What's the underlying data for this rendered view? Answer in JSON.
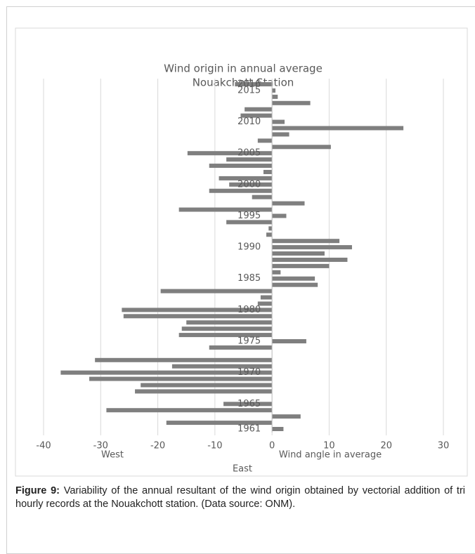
{
  "chart_data": {
    "type": "hbar",
    "title": "Wind origin in annual average",
    "subtitle": "Nouakchott Station",
    "x_label": "Wind angle in average",
    "annotations": [
      "West",
      "East"
    ],
    "categories": [
      "1961",
      null,
      null,
      null,
      "1965",
      null,
      null,
      null,
      null,
      "1970",
      null,
      null,
      null,
      null,
      "1975",
      null,
      null,
      null,
      null,
      "1980",
      null,
      null,
      null,
      null,
      "1985",
      null,
      null,
      null,
      null,
      "1990",
      null,
      null,
      null,
      null,
      "1995",
      null,
      null,
      null,
      null,
      "2000",
      null,
      null,
      null,
      null,
      "2005",
      null,
      null,
      null,
      null,
      "2010",
      null,
      null,
      null,
      null,
      "2015",
      "2016"
    ],
    "values": [
      2,
      -18.5,
      5,
      -29,
      -8.5,
      0,
      -24,
      -23,
      -32,
      -37,
      -17.5,
      -31,
      0,
      -11,
      6,
      -16.3,
      -15.8,
      -15,
      -26,
      -26.3,
      -2.5,
      -2,
      -19.5,
      8,
      7.5,
      1.5,
      10,
      13.2,
      9.2,
      14,
      11.8,
      -1,
      -0.6,
      -8,
      2.5,
      -16.3,
      5.7,
      -3.5,
      -11,
      -7.5,
      -9.3,
      -1.5,
      -11,
      -8,
      -14.8,
      10.3,
      -2.5,
      3,
      23,
      2.2,
      -5.5,
      -4.8,
      6.7,
      1,
      0.6,
      -6.5
    ],
    "color": "#7f7f7f",
    "xlim": [
      -40,
      30
    ],
    "xticks": [
      -40,
      -30,
      -20,
      -10,
      0,
      10,
      20,
      30
    ],
    "grid": true
  },
  "caption": {
    "label": "Figure 9:",
    "text": "Variability of the annual resultant of the wind origin obtained by vectorial addition of tri hourly records at the Nouakchott station. (Data source: ONM)."
  }
}
